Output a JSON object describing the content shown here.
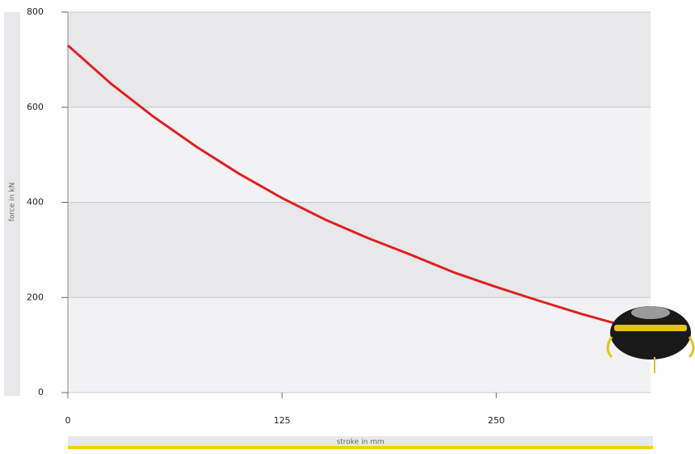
{
  "chart_data": {
    "type": "line",
    "xlabel": "stroke in mm",
    "ylabel": "force in kN",
    "x": [
      0,
      25,
      50,
      75,
      100,
      125,
      150,
      175,
      200,
      225,
      250,
      275,
      300,
      319
    ],
    "series": [
      {
        "name": "force",
        "color": "#e02020",
        "values": [
          730,
          650,
          580,
          517,
          460,
          409,
          364,
          325,
          290,
          253,
          222,
          193,
          165,
          146
        ]
      }
    ],
    "xlim": [
      0,
      340
    ],
    "xticks": [
      0,
      125,
      250
    ],
    "ylim": [
      0,
      800
    ],
    "yticks": [
      0,
      200,
      400,
      600,
      800
    ],
    "grid": true
  }
}
